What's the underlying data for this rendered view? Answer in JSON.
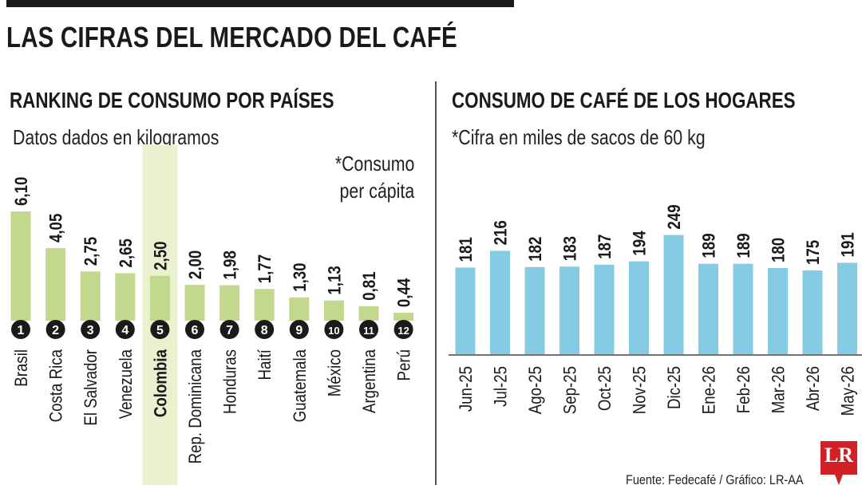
{
  "title": "LAS CIFRAS DEL MERCADO DEL CAFÉ",
  "colors": {
    "left_bar": "#c2d98d",
    "highlight_band": "#eaf1cf",
    "right_bar": "#84cbe3",
    "text": "#1a1a1a",
    "badge": "#1a1a1a",
    "logo": "#d32027"
  },
  "left": {
    "title": "RANKING DE CONSUMO POR PAÍSES",
    "note": "Datos dados en kilogramos",
    "note2_line1": "*Consumo",
    "note2_line2": "per cápita"
  },
  "right": {
    "title": "CONSUMO DE CAFÉ DE LOS HOGARES",
    "note": "*Cifra en miles de sacos de 60 kg"
  },
  "source": "Fuente: Fedecafé / Gráfico: LR-AA",
  "logo_text": "LR",
  "chart_data": [
    {
      "type": "bar",
      "categories": [
        "Brasil",
        "Costa Rica",
        "El Salvador",
        "Venezuela",
        "Colombia",
        "Rep. Dominicana",
        "Honduras",
        "Haití",
        "Guatemala",
        "México",
        "Argentina",
        "Perú"
      ],
      "values": [
        6.1,
        4.05,
        2.75,
        2.65,
        2.5,
        2.0,
        1.98,
        1.77,
        1.3,
        1.13,
        0.81,
        0.44
      ],
      "labels": [
        "6,10",
        "4,05",
        "2,75",
        "2,65",
        "2,50",
        "2,00",
        "1,98",
        "1,77",
        "1,30",
        "1,13",
        "0,81",
        "0,44"
      ],
      "ranks": [
        "1",
        "2",
        "3",
        "4",
        "5",
        "6",
        "7",
        "8",
        "9",
        "10",
        "11",
        "12"
      ],
      "highlight": "Colombia",
      "title": "RANKING DE CONSUMO POR PAÍSES"
    },
    {
      "type": "bar",
      "categories": [
        "Jun-25",
        "Jul-25",
        "Ago-25",
        "Sep-25",
        "Oct-25",
        "Nov-25",
        "Dic-25",
        "Ene-26",
        "Feb-26",
        "Mar-26",
        "Abr-26",
        "May-26"
      ],
      "values": [
        181,
        216,
        182,
        183,
        187,
        194,
        249,
        189,
        189,
        180,
        175,
        191
      ],
      "title": "CONSUMO DE CAFÉ DE LOS HOGARES"
    }
  ]
}
